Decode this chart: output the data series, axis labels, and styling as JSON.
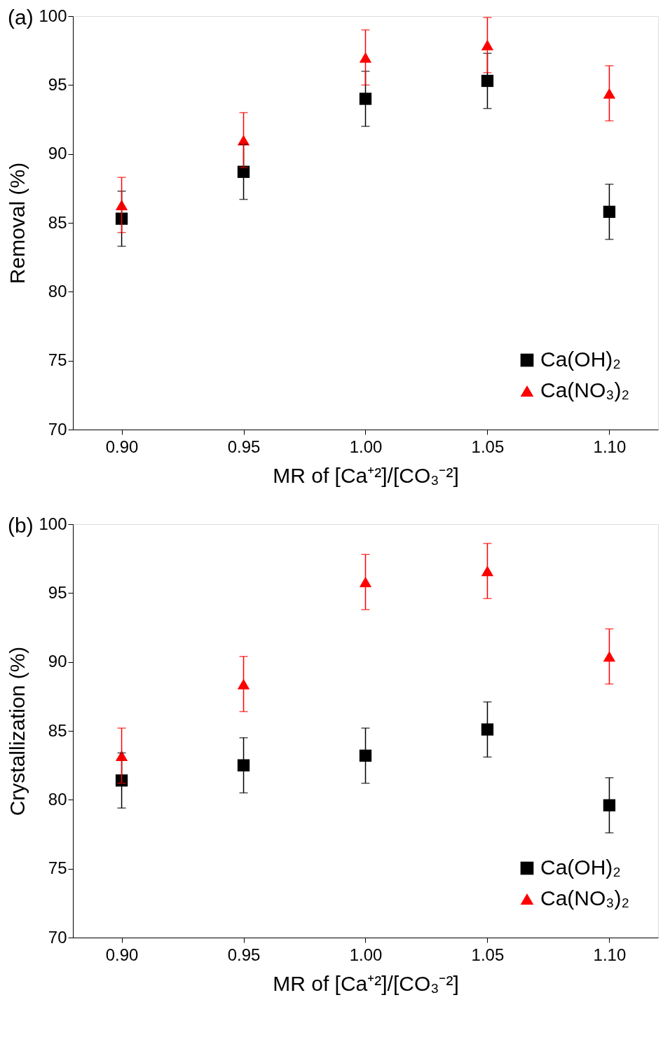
{
  "chart_data": [
    {
      "type": "scatter",
      "title": "(a)",
      "xlabel": "MR of [Ca⁺²]/[CO₃⁻²]",
      "ylabel": "Removal (%)",
      "x": [
        0.9,
        0.95,
        1.0,
        1.05,
        1.1
      ],
      "xlim": [
        0.88,
        1.12
      ],
      "xticks": [
        {
          "value": 0.9,
          "label": "0.90"
        },
        {
          "value": 0.95,
          "label": "0.95"
        },
        {
          "value": 1.0,
          "label": "1.00"
        },
        {
          "value": 1.05,
          "label": "1.05"
        },
        {
          "value": 1.1,
          "label": "1.10"
        }
      ],
      "ylim": [
        70,
        100
      ],
      "yticks": [
        70,
        75,
        80,
        85,
        90,
        95,
        100
      ],
      "grid": false,
      "legend": "bottom right",
      "series": [
        {
          "name": "Ca(OH)₂",
          "color": "#000000",
          "marker": "square",
          "values": [
            85.3,
            88.7,
            94.0,
            95.3,
            85.8
          ],
          "errors": [
            2,
            2,
            2,
            2,
            2
          ]
        },
        {
          "name": "Ca(NO₃)₂",
          "color": "#ff0000",
          "marker": "triangle",
          "values": [
            86.3,
            91.0,
            97.0,
            97.9,
            94.4
          ],
          "errors": [
            2,
            2,
            2,
            2,
            2
          ]
        }
      ]
    },
    {
      "type": "scatter",
      "title": "(b)",
      "xlabel": "MR of [Ca⁺²]/[CO₃⁻²]",
      "ylabel": "Crystallization (%)",
      "x": [
        0.9,
        0.95,
        1.0,
        1.05,
        1.1
      ],
      "xlim": [
        0.88,
        1.12
      ],
      "xticks": [
        {
          "value": 0.9,
          "label": "0.90"
        },
        {
          "value": 0.95,
          "label": "0.95"
        },
        {
          "value": 1.0,
          "label": "1.00"
        },
        {
          "value": 1.05,
          "label": "1.05"
        },
        {
          "value": 1.1,
          "label": "1.10"
        }
      ],
      "ylim": [
        70,
        100
      ],
      "yticks": [
        70,
        75,
        80,
        85,
        90,
        95,
        100
      ],
      "grid": false,
      "legend": "bottom right",
      "series": [
        {
          "name": "Ca(OH)₂",
          "color": "#000000",
          "marker": "square",
          "values": [
            81.4,
            82.5,
            83.2,
            85.1,
            79.6
          ],
          "errors": [
            2,
            2,
            2,
            2,
            2
          ]
        },
        {
          "name": "Ca(NO₃)₂",
          "color": "#ff0000",
          "marker": "triangle",
          "values": [
            83.2,
            88.4,
            95.8,
            96.6,
            90.4
          ],
          "errors": [
            2,
            2,
            2,
            2,
            2
          ]
        }
      ]
    }
  ]
}
